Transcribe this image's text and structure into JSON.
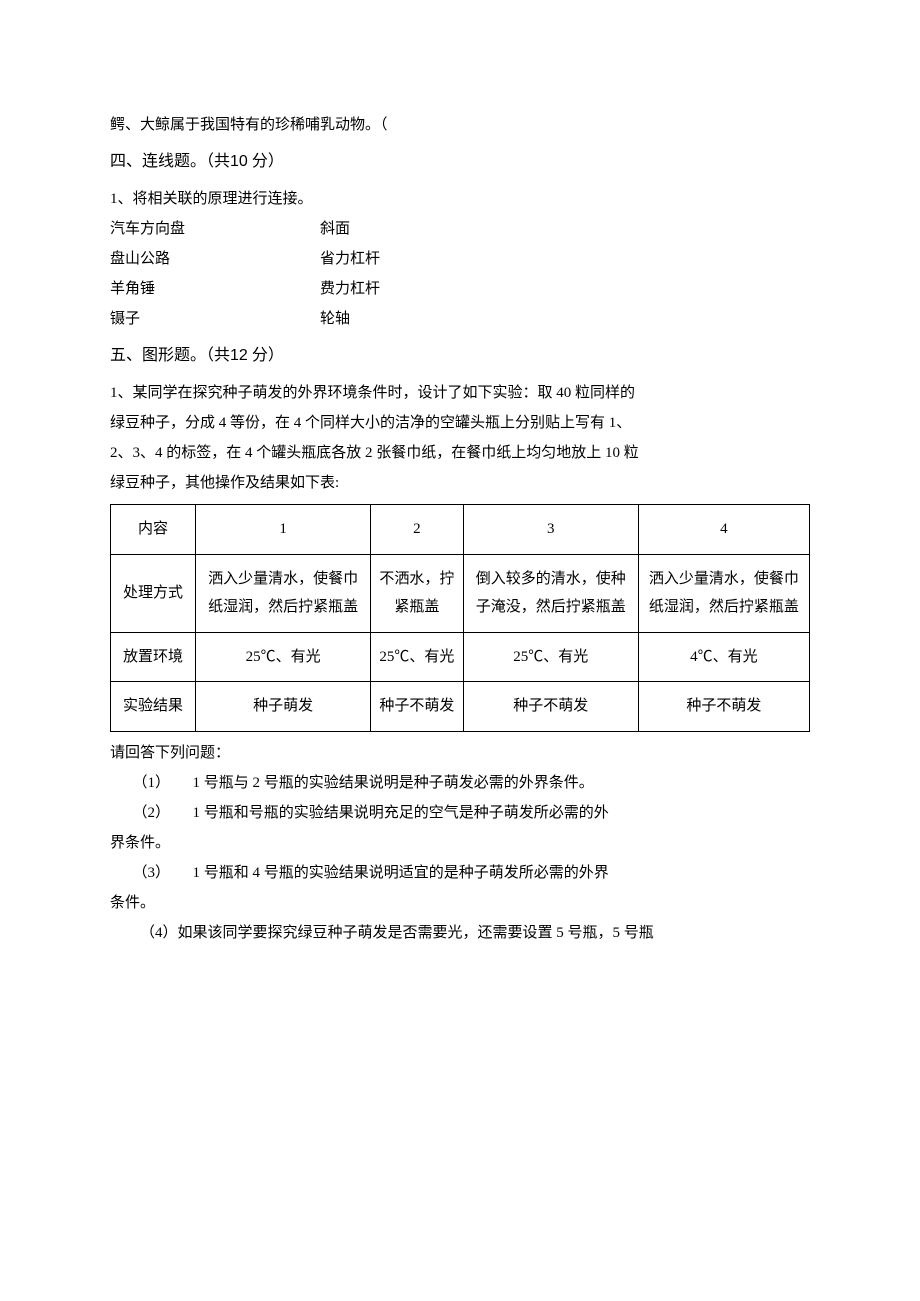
{
  "intro_line": "鳄、大鲸属于我国特有的珍稀哺乳动物。（",
  "section4": {
    "title_prefix": "四、连线题。（共",
    "points": "10",
    "title_suffix": " 分）",
    "q1": "1、将相关联的原理进行连接。",
    "pairs": [
      {
        "left": "汽车方向盘",
        "right": "斜面"
      },
      {
        "left": "盘山公路",
        "right": "省力杠杆"
      },
      {
        "left": "羊角锤",
        "right": "费力杠杆"
      },
      {
        "left": "镊子",
        "right": "轮轴"
      }
    ]
  },
  "section5": {
    "title_prefix": "五、图形题。（共",
    "points": "12",
    "title_suffix": " 分）",
    "stem": [
      "1、某同学在探究种子萌发的外界环境条件时，设计了如下实验：取 40 粒同样的",
      "绿豆种子，分成 4 等份，在 4 个同样大小的洁净的空罐头瓶上分别贴上写有 1、",
      "2、3、4 的标签，在 4 个罐头瓶底各放 2 张餐巾纸，在餐巾纸上均匀地放上 10 粒",
      "绿豆种子，其他操作及结果如下表:"
    ],
    "table": {
      "header": [
        "内容",
        "1",
        "2",
        "3",
        "4"
      ],
      "rows": [
        {
          "label": "处理方式",
          "cells": [
            "洒入少量清水，使餐巾纸湿润，然后拧紧瓶盖",
            "不洒水，拧紧瓶盖",
            "倒入较多的清水，使种子淹没，然后拧紧瓶盖",
            "洒入少量清水，使餐巾纸湿润，然后拧紧瓶盖"
          ]
        },
        {
          "label": "放置环境",
          "cells": [
            "25℃、有光",
            "25℃、有光",
            "25℃、有光",
            "4℃、有光"
          ]
        },
        {
          "label": "实验结果",
          "cells": [
            "种子萌发",
            "种子不萌发",
            "种子不萌发",
            "种子不萌发"
          ]
        }
      ]
    },
    "after_table": "请回答下列问题：",
    "questions": [
      {
        "num": "（1）",
        "text": "1 号瓶与 2 号瓶的实验结果说明是种子萌发必需的外界条件。"
      },
      {
        "num": "（2）",
        "text": "1 号瓶和号瓶的实验结果说明充足的空气是种子萌发所必需的外"
      },
      {
        "num": "",
        "text": "界条件。",
        "noindent": true
      },
      {
        "num": "（3）",
        "text": "1 号瓶和 4 号瓶的实验结果说明适宜的是种子萌发所必需的外界"
      },
      {
        "num": "",
        "text": "条件。",
        "noindent": true
      },
      {
        "num": "",
        "text": "（4）如果该同学要探究绿豆种子萌发是否需要光，还需要设置 5 号瓶，5 号瓶",
        "plainindent": true
      }
    ]
  }
}
